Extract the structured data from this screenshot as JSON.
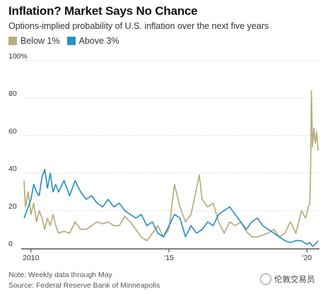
{
  "title": "Inflation? Market Says No Chance",
  "subtitle": "Options-implied probability of U.S. inflation over the next five years",
  "note": "Note: Weekly data through May",
  "source": "Source: Federal Reserve Bank of Minneapolis",
  "watermark": "伦敦交易员",
  "colors": {
    "below": "#b5ad7a",
    "above": "#2a8fc8",
    "grid": "#d6d6d6",
    "axis": "#333333"
  },
  "chart_data": {
    "type": "line",
    "x_unit": "year",
    "xlim": [
      2009.75,
      2020.45
    ],
    "ylim": [
      0,
      100
    ],
    "y_ticks": [
      0,
      20,
      40,
      60,
      80,
      100
    ],
    "y_tick_labels": [
      "0",
      "20",
      "40",
      "60",
      "80",
      "100%"
    ],
    "x_ticks": [
      2010,
      2015,
      2020
    ],
    "x_tick_labels": [
      "2010",
      "'15",
      "'20"
    ],
    "grid": true,
    "legend_position": "top-left",
    "series": [
      {
        "name": "Below 1%",
        "color": "#b5ad7a",
        "x": [
          2009.75,
          2009.8,
          2009.9,
          2010.0,
          2010.1,
          2010.2,
          2010.3,
          2010.4,
          2010.5,
          2010.6,
          2010.7,
          2010.8,
          2010.9,
          2011.0,
          2011.2,
          2011.4,
          2011.6,
          2011.8,
          2012.0,
          2012.2,
          2012.4,
          2012.6,
          2012.8,
          2013.0,
          2013.2,
          2013.4,
          2013.6,
          2013.8,
          2014.0,
          2014.2,
          2014.4,
          2014.6,
          2014.8,
          2015.0,
          2015.2,
          2015.4,
          2015.6,
          2015.8,
          2016.0,
          2016.1,
          2016.2,
          2016.4,
          2016.6,
          2016.8,
          2017.0,
          2017.2,
          2017.4,
          2017.6,
          2017.8,
          2018.0,
          2018.2,
          2018.4,
          2018.6,
          2018.8,
          2019.0,
          2019.2,
          2019.4,
          2019.6,
          2019.8,
          2019.95,
          2020.05,
          2020.1,
          2020.13,
          2020.16,
          2020.2,
          2020.25,
          2020.3,
          2020.35,
          2020.4
        ],
        "values": [
          36,
          22,
          30,
          18,
          24,
          14,
          20,
          16,
          10,
          16,
          12,
          18,
          12,
          8,
          9,
          8,
          14,
          10,
          10,
          12,
          14,
          13,
          14,
          12,
          12,
          17,
          14,
          10,
          6,
          4,
          8,
          12,
          6,
          10,
          34,
          22,
          14,
          18,
          32,
          39,
          26,
          22,
          24,
          14,
          8,
          14,
          12,
          14,
          9,
          6,
          6,
          7,
          8,
          10,
          6,
          8,
          14,
          8,
          20,
          16,
          22,
          24,
          40,
          84,
          54,
          64,
          56,
          62,
          52
        ]
      },
      {
        "name": "Above 3%",
        "color": "#2a8fc8",
        "x": [
          2009.75,
          2009.9,
          2010.0,
          2010.1,
          2010.2,
          2010.3,
          2010.4,
          2010.5,
          2010.6,
          2010.7,
          2010.8,
          2010.9,
          2011.0,
          2011.2,
          2011.4,
          2011.6,
          2011.8,
          2012.0,
          2012.2,
          2012.4,
          2012.6,
          2012.8,
          2013.0,
          2013.2,
          2013.4,
          2013.6,
          2013.8,
          2014.0,
          2014.2,
          2014.4,
          2014.6,
          2014.8,
          2015.0,
          2015.2,
          2015.4,
          2015.6,
          2015.8,
          2016.0,
          2016.2,
          2016.4,
          2016.6,
          2016.8,
          2017.0,
          2017.2,
          2017.4,
          2017.6,
          2017.8,
          2018.0,
          2018.2,
          2018.4,
          2018.6,
          2018.8,
          2019.0,
          2019.2,
          2019.4,
          2019.6,
          2019.8,
          2020.0,
          2020.1,
          2020.2,
          2020.3,
          2020.4
        ],
        "values": [
          16,
          22,
          26,
          34,
          30,
          28,
          38,
          42,
          32,
          40,
          30,
          34,
          30,
          36,
          28,
          36,
          30,
          26,
          28,
          24,
          22,
          26,
          22,
          24,
          20,
          18,
          16,
          18,
          12,
          14,
          8,
          6,
          12,
          18,
          16,
          6,
          12,
          8,
          10,
          14,
          12,
          18,
          20,
          22,
          18,
          14,
          10,
          14,
          16,
          12,
          10,
          8,
          6,
          4,
          3,
          4,
          4,
          2,
          3,
          1,
          2,
          4
        ]
      }
    ]
  }
}
